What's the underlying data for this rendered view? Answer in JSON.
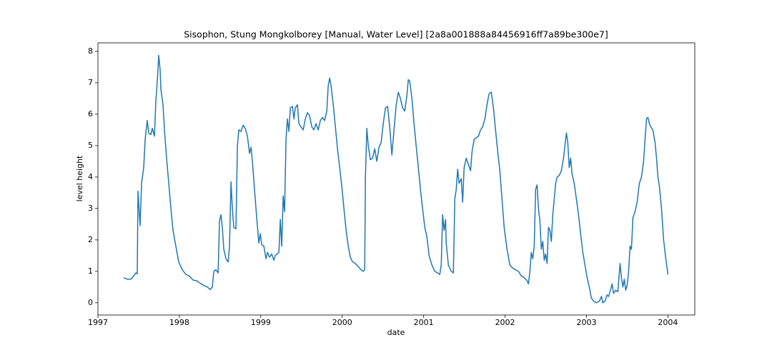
{
  "chart_data": {
    "type": "line",
    "title": "Sisophon, Stung  Mongkolborey [Manual, Water Level] [2a8a001888a84456916ff7a89be300e7]",
    "x_label": "date",
    "y_label": "level height",
    "color": "#1f77b4",
    "xlim": [
      1997,
      2004.33
    ],
    "xticks": [
      1997,
      1998,
      1999,
      2000,
      2001,
      2002,
      2003,
      2004
    ],
    "ylim": [
      -0.39,
      8.27
    ],
    "yticks": [
      0,
      1,
      2,
      3,
      4,
      5,
      6,
      7,
      8
    ],
    "x": [
      1997.316,
      1997.36,
      1997.404,
      1997.439,
      1997.465,
      1997.483,
      1997.492,
      1997.518,
      1997.536,
      1997.562,
      1997.58,
      1997.606,
      1997.624,
      1997.65,
      1997.668,
      1997.694,
      1997.711,
      1997.729,
      1997.747,
      1997.764,
      1997.773,
      1997.799,
      1997.817,
      1997.843,
      1997.87,
      1997.896,
      1997.922,
      1997.957,
      1997.992,
      1998.036,
      1998.08,
      1998.124,
      1998.168,
      1998.212,
      1998.256,
      1998.3,
      1998.344,
      1998.379,
      1998.405,
      1998.423,
      1998.449,
      1998.476,
      1998.493,
      1998.511,
      1998.528,
      1998.546,
      1998.572,
      1998.599,
      1998.616,
      1998.634,
      1998.651,
      1998.669,
      1998.695,
      1998.713,
      1998.73,
      1998.757,
      1998.783,
      1998.809,
      1998.836,
      1998.862,
      1998.88,
      1998.897,
      1998.923,
      1998.95,
      1998.976,
      1998.994,
      1999.011,
      1999.038,
      1999.064,
      1999.082,
      1999.108,
      1999.134,
      1999.161,
      1999.178,
      1999.222,
      1999.24,
      1999.257,
      1999.275,
      1999.292,
      1999.31,
      1999.327,
      1999.345,
      1999.363,
      1999.389,
      1999.407,
      1999.424,
      1999.45,
      1999.468,
      1999.494,
      1999.521,
      1999.547,
      1999.573,
      1999.6,
      1999.626,
      1999.652,
      1999.679,
      1999.705,
      1999.732,
      1999.758,
      1999.784,
      1999.811,
      1999.828,
      1999.846,
      1999.863,
      1999.89,
      1999.916,
      1999.942,
      1999.969,
      1999.995,
      2000.021,
      2000.048,
      2000.074,
      2000.1,
      2000.127,
      2000.162,
      2000.197,
      2000.232,
      2000.258,
      2000.276,
      2000.285,
      2000.302,
      2000.32,
      2000.346,
      2000.373,
      2000.399,
      2000.425,
      2000.452,
      2000.478,
      2000.504,
      2000.531,
      2000.557,
      2000.583,
      2000.61,
      2000.636,
      2000.663,
      2000.689,
      2000.715,
      2000.742,
      2000.768,
      2000.794,
      2000.812,
      2000.829,
      2000.856,
      2000.882,
      2000.908,
      2000.935,
      2000.961,
      2000.987,
      2001.014,
      2001.04,
      2001.067,
      2001.102,
      2001.137,
      2001.172,
      2001.198,
      2001.216,
      2001.233,
      2001.251,
      2001.269,
      2001.277,
      2001.304,
      2001.339,
      2001.365,
      2001.383,
      2001.4,
      2001.418,
      2001.435,
      2001.462,
      2001.479,
      2001.497,
      2001.523,
      2001.55,
      2001.576,
      2001.594,
      2001.62,
      2001.646,
      2001.673,
      2001.699,
      2001.725,
      2001.752,
      2001.778,
      2001.804,
      2001.831,
      2001.857,
      2001.883,
      2001.91,
      2001.936,
      2001.962,
      2001.989,
      2002.024,
      2002.059,
      2002.094,
      2002.129,
      2002.164,
      2002.2,
      2002.235,
      2002.27,
      2002.287,
      2002.305,
      2002.322,
      2002.34,
      2002.358,
      2002.375,
      2002.393,
      2002.41,
      2002.428,
      2002.445,
      2002.463,
      2002.481,
      2002.498,
      2002.516,
      2002.533,
      2002.551,
      2002.568,
      2002.586,
      2002.604,
      2002.621,
      2002.639,
      2002.665,
      2002.691,
      2002.718,
      2002.735,
      2002.753,
      2002.77,
      2002.788,
      2002.805,
      2002.823,
      2002.849,
      2002.876,
      2002.902,
      2002.928,
      2002.955,
      2002.981,
      2003.008,
      2003.034,
      2003.06,
      2003.087,
      2003.122,
      2003.157,
      2003.183,
      2003.201,
      2003.227,
      2003.253,
      2003.271,
      2003.289,
      2003.315,
      2003.332,
      2003.359,
      2003.385,
      2003.412,
      2003.429,
      2003.447,
      2003.464,
      2003.482,
      2003.499,
      2003.517,
      2003.535,
      2003.552,
      2003.57,
      2003.596,
      2003.622,
      2003.649,
      2003.675,
      2003.701,
      2003.719,
      2003.737,
      2003.754,
      2003.772,
      2003.789,
      2003.815,
      2003.842,
      2003.86,
      2003.877,
      2003.895,
      2003.921,
      2003.947,
      2003.974,
      2004.0
    ],
    "values": [
      0.8,
      0.75,
      0.75,
      0.85,
      0.95,
      0.92,
      3.55,
      2.45,
      3.8,
      4.3,
      5.2,
      5.8,
      5.4,
      5.35,
      5.55,
      5.3,
      6.4,
      7.05,
      7.87,
      7.4,
      6.8,
      6.3,
      5.5,
      4.6,
      3.8,
      3.0,
      2.3,
      1.8,
      1.3,
      1.05,
      0.9,
      0.85,
      0.72,
      0.7,
      0.62,
      0.55,
      0.5,
      0.42,
      0.5,
      1.0,
      1.05,
      0.95,
      2.6,
      2.8,
      2.4,
      1.7,
      1.4,
      1.3,
      1.8,
      3.85,
      3.0,
      2.4,
      2.35,
      5.0,
      5.5,
      5.45,
      5.65,
      5.55,
      5.3,
      4.75,
      4.95,
      4.5,
      3.6,
      2.7,
      1.9,
      2.2,
      1.85,
      1.8,
      1.4,
      1.6,
      1.45,
      1.55,
      1.35,
      1.5,
      1.6,
      2.65,
      1.8,
      3.4,
      2.9,
      5.2,
      5.85,
      5.45,
      6.2,
      6.25,
      5.85,
      6.2,
      6.3,
      5.7,
      5.6,
      5.5,
      5.85,
      6.05,
      5.95,
      5.6,
      5.5,
      5.7,
      5.5,
      5.8,
      5.9,
      5.8,
      6.1,
      6.9,
      7.15,
      6.9,
      6.3,
      5.6,
      4.9,
      4.3,
      3.7,
      3.0,
      2.3,
      1.8,
      1.45,
      1.3,
      1.25,
      1.15,
      1.05,
      1.0,
      1.05,
      4.0,
      5.55,
      5.0,
      4.55,
      4.6,
      4.9,
      4.5,
      4.95,
      5.1,
      5.7,
      6.2,
      6.25,
      5.6,
      4.7,
      5.5,
      6.3,
      6.7,
      6.5,
      6.2,
      6.1,
      6.6,
      7.1,
      7.05,
      6.5,
      5.7,
      5.0,
      4.3,
      3.6,
      3.0,
      2.4,
      2.1,
      1.5,
      1.2,
      1.0,
      0.95,
      0.9,
      1.2,
      2.8,
      2.3,
      2.65,
      1.9,
      1.2,
      1.0,
      0.95,
      3.3,
      3.6,
      4.25,
      3.8,
      3.95,
      3.2,
      4.3,
      4.6,
      4.4,
      4.2,
      4.8,
      5.2,
      5.25,
      5.3,
      5.5,
      5.6,
      5.85,
      6.3,
      6.65,
      6.7,
      6.2,
      5.5,
      4.8,
      4.2,
      3.3,
      2.4,
      1.7,
      1.2,
      1.1,
      1.05,
      1.0,
      0.85,
      0.8,
      0.7,
      0.6,
      1.0,
      1.6,
      1.4,
      1.8,
      3.6,
      3.75,
      3.0,
      2.6,
      1.7,
      1.95,
      1.35,
      1.55,
      1.25,
      2.4,
      2.3,
      1.95,
      2.8,
      3.3,
      3.8,
      4.0,
      4.05,
      4.2,
      4.6,
      5.0,
      5.4,
      5.1,
      4.3,
      4.6,
      4.1,
      3.8,
      3.3,
      2.8,
      2.2,
      1.6,
      1.2,
      0.8,
      0.5,
      0.15,
      0.05,
      0.0,
      0.05,
      0.2,
      0.0,
      0.05,
      0.25,
      0.2,
      0.35,
      0.6,
      0.3,
      0.4,
      0.35,
      1.25,
      0.8,
      0.5,
      0.75,
      0.4,
      0.55,
      1.0,
      1.8,
      1.7,
      2.7,
      2.9,
      3.2,
      3.8,
      4.0,
      4.5,
      5.2,
      5.85,
      5.9,
      5.7,
      5.6,
      5.5,
      5.1,
      4.6,
      4.0,
      3.7,
      3.0,
      2.0,
      1.4,
      0.9
    ]
  }
}
